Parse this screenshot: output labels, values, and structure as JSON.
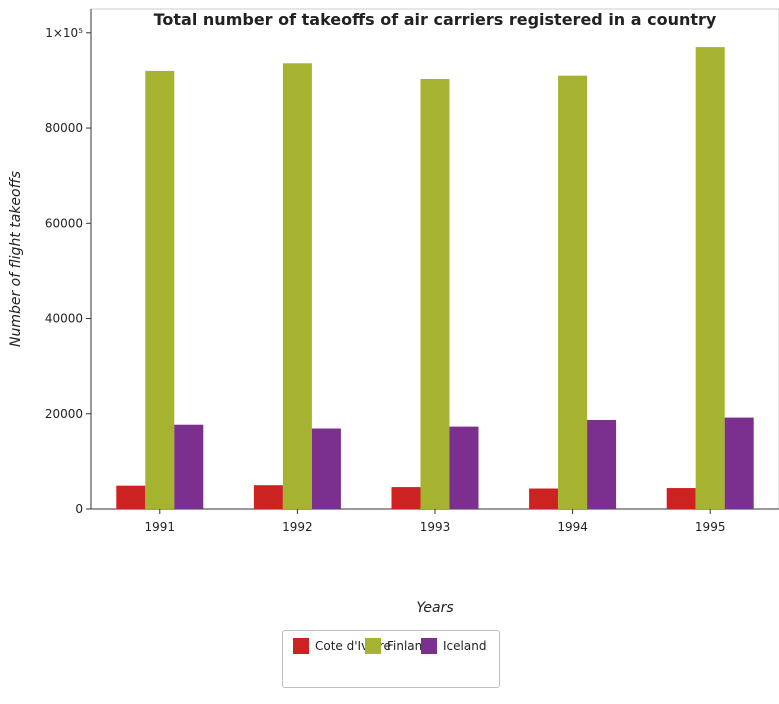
{
  "chart_data": {
    "type": "bar",
    "title": "Total number of takeoffs of air carriers registered in a country",
    "xlabel": "Years",
    "ylabel": "Number of flight takeoffs",
    "categories": [
      "1991",
      "1992",
      "1993",
      "1994",
      "1995"
    ],
    "series": [
      {
        "name": "Cote d'Ivoire",
        "color": "#cc2222",
        "values": [
          4900,
          5000,
          4600,
          4300,
          4400
        ]
      },
      {
        "name": "Finland",
        "color": "#a6b331",
        "values": [
          92000,
          93600,
          90300,
          91000,
          97000
        ]
      },
      {
        "name": "Iceland",
        "color": "#7b2f8e",
        "values": [
          17700,
          16900,
          17300,
          18700,
          19200
        ]
      }
    ],
    "ylim": [
      0,
      105000
    ],
    "yticks": [
      0,
      20000,
      40000,
      60000,
      80000,
      100000
    ],
    "ytick_labels": [
      "0",
      "20000",
      "40000",
      "60000",
      "80000",
      "1×10⁵"
    ],
    "grid": false,
    "legend_position": "bottom-center"
  }
}
